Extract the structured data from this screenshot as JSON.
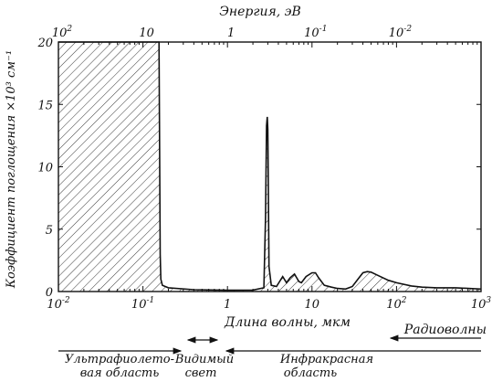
{
  "chart_data": {
    "type": "area",
    "title": "",
    "x_top_label": "Энергия, эВ",
    "x_label": "Длина волны, мкм",
    "y_label": "Коэффициент поглощения ×10³ см⁻¹",
    "x_scale": "log",
    "x_range": [
      0.01,
      1000
    ],
    "y_range": [
      0,
      20
    ],
    "y_ticks": [
      "0",
      "5",
      "10",
      "15",
      "20"
    ],
    "x_ticks_bottom": [
      {
        "base": "10",
        "exp": "-2",
        "value": 0.01
      },
      {
        "base": "10",
        "exp": "-1",
        "value": 0.1
      },
      {
        "base": "1",
        "exp": "",
        "value": 1
      },
      {
        "base": "10",
        "exp": "",
        "value": 10
      },
      {
        "base": "10",
        "exp": "2",
        "value": 100
      },
      {
        "base": "10",
        "exp": "3",
        "value": 1000
      }
    ],
    "x_ticks_top": [
      {
        "base": "10",
        "exp": "2",
        "wavelength": 0.01
      },
      {
        "base": "10",
        "exp": "",
        "wavelength": 0.1
      },
      {
        "base": "1",
        "exp": "",
        "wavelength": 1
      },
      {
        "base": "10",
        "exp": "-1",
        "wavelength": 10
      },
      {
        "base": "10",
        "exp": "-2",
        "wavelength": 100
      }
    ],
    "series": [
      {
        "x": [
          0.01,
          0.155,
          0.16,
          0.163,
          0.17,
          0.2,
          0.4,
          1,
          2,
          2.7,
          2.82,
          2.9,
          2.96,
          3.0,
          3.1,
          3.3,
          3.8,
          4.5,
          5.0,
          5.5,
          6.2,
          7.0,
          7.5,
          8.5,
          10.0,
          11.0,
          12.0,
          14.0,
          17.0,
          20.0,
          25.0,
          30.0,
          35.0,
          40.0,
          45.0,
          50.0,
          60.0,
          80.0,
          100.0,
          150.0,
          200.0,
          300.0,
          500.0,
          700.0,
          1000.0
        ],
        "y": [
          20,
          20,
          3,
          1,
          0.5,
          0.3,
          0.15,
          0.1,
          0.12,
          0.3,
          6,
          13.3,
          14,
          13,
          2,
          0.5,
          0.4,
          1.2,
          0.7,
          1.1,
          1.4,
          0.8,
          0.7,
          1.2,
          1.5,
          1.5,
          1.1,
          0.5,
          0.35,
          0.25,
          0.2,
          0.4,
          1.0,
          1.5,
          1.6,
          1.55,
          1.3,
          0.9,
          0.7,
          0.45,
          0.35,
          0.3,
          0.3,
          0.25,
          0.2
        ]
      }
    ]
  },
  "regions": {
    "radio": "Радиоволны",
    "uv": [
      "Ультрафиолето-",
      "вая область"
    ],
    "visible": [
      "Видимый",
      "свет"
    ],
    "ir": [
      "Инфракрасная",
      "область"
    ]
  }
}
